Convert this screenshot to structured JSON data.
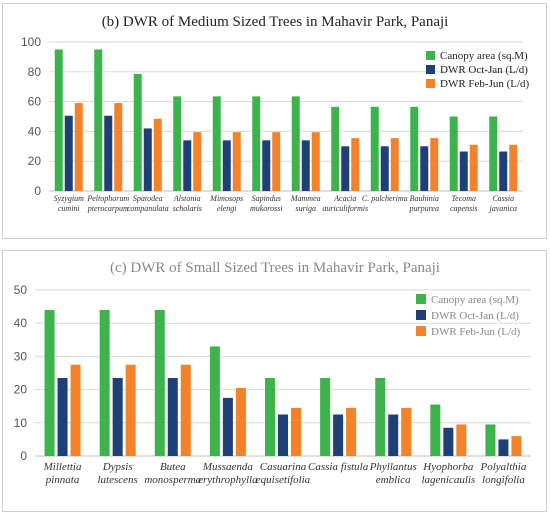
{
  "colors": {
    "canopy": "#3cb44b",
    "oct": "#1f3f77",
    "feb": "#f4822a",
    "grid": "#d9d9d9"
  },
  "chart_data": [
    {
      "type": "bar",
      "title": "(b) DWR of Medium Sized Trees in Mahavir Park, Panaji",
      "ylim": [
        0,
        100
      ],
      "yticks": [
        0,
        20,
        40,
        60,
        80,
        100
      ],
      "legend_position": "top-right",
      "categories": [
        [
          "Syzygium",
          "cumini"
        ],
        [
          "Peltophorum",
          "pterocarpum"
        ],
        [
          "Spatodea",
          "companulata"
        ],
        [
          "Alstonia",
          "scholaris"
        ],
        [
          "Mimosops",
          "elengi"
        ],
        [
          "Sapindus",
          "mukorossi"
        ],
        [
          "Mammea",
          "suriga"
        ],
        [
          "Acacia",
          "auriculiformis"
        ],
        [
          "C. pulcherima"
        ],
        [
          "Bauhinia",
          "purpurea"
        ],
        [
          "Tecoma",
          "capensis"
        ],
        [
          "Cassia",
          "javanica"
        ]
      ],
      "series": [
        {
          "name": "Canopy area (sq.M)",
          "color_key": "canopy",
          "values": [
            95,
            95,
            78.5,
            63.5,
            63.5,
            63.5,
            63.5,
            56.5,
            56.5,
            56.5,
            50,
            50
          ]
        },
        {
          "name": "DWR Oct-Jan (L/d)",
          "color_key": "oct",
          "values": [
            50.5,
            50.5,
            42,
            34,
            34,
            34,
            34,
            30,
            30,
            30,
            26.5,
            26.5
          ]
        },
        {
          "name": "DWR Feb-Jun (L/d)",
          "color_key": "feb",
          "values": [
            59,
            59,
            48.5,
            39.5,
            39.5,
            39.5,
            39.5,
            35.5,
            35.5,
            35.5,
            31,
            31
          ]
        }
      ]
    },
    {
      "type": "bar",
      "title": "(c) DWR of Small Sized Trees in Mahavir Park, Panaji",
      "ylim": [
        0,
        50
      ],
      "yticks": [
        0,
        10,
        20,
        30,
        40,
        50
      ],
      "legend_position": "top-right",
      "categories": [
        [
          "Millettia",
          "pinnata"
        ],
        [
          "Dypsis",
          "lutescens"
        ],
        [
          "Butea",
          "monosperma"
        ],
        [
          "Mussaenda",
          "erythrophylla"
        ],
        [
          "Casuarina",
          "equisetifolia"
        ],
        [
          "Cassia fistula"
        ],
        [
          "Phyllantus",
          "emblica"
        ],
        [
          "Hyophorba",
          "lagenicaulis"
        ],
        [
          "Polyalthia",
          "longifolia"
        ]
      ],
      "series": [
        {
          "name": "Canopy area (sq.M)",
          "color_key": "canopy",
          "values": [
            44,
            44,
            44,
            33,
            23.5,
            23.5,
            23.5,
            15.5,
            9.5
          ]
        },
        {
          "name": "DWR Oct-Jan (L/d)",
          "color_key": "oct",
          "values": [
            23.5,
            23.5,
            23.5,
            17.5,
            12.5,
            12.5,
            12.5,
            8.5,
            5
          ]
        },
        {
          "name": "DWR Feb-Jun (L/d)",
          "color_key": "feb",
          "values": [
            27.5,
            27.5,
            27.5,
            20.5,
            14.5,
            14.5,
            14.5,
            9.5,
            6
          ]
        }
      ]
    }
  ]
}
